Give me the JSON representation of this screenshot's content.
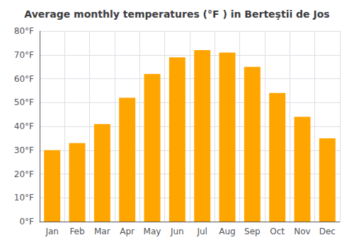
{
  "chart_data": {
    "type": "bar",
    "title": "Average monthly temperatures (°F ) in Berteştii de Jos",
    "categories": [
      "Jan",
      "Feb",
      "Mar",
      "Apr",
      "May",
      "Jun",
      "Jul",
      "Aug",
      "Sep",
      "Oct",
      "Nov",
      "Dec"
    ],
    "values": [
      30,
      33,
      41,
      52,
      62,
      69,
      72,
      71,
      65,
      54,
      44,
      35
    ],
    "color": "#FFA500",
    "ylim": [
      0,
      80
    ],
    "yticks": [
      {
        "value": 0,
        "label": "0°F"
      },
      {
        "value": 10,
        "label": "10°F"
      },
      {
        "value": 20,
        "label": "20°F"
      },
      {
        "value": 30,
        "label": "30°F"
      },
      {
        "value": 40,
        "label": "40°F"
      },
      {
        "value": 50,
        "label": "50°F"
      },
      {
        "value": 60,
        "label": "60°F"
      },
      {
        "value": 70,
        "label": "70°F"
      },
      {
        "value": 80,
        "label": "80°F"
      }
    ],
    "grid": true
  }
}
